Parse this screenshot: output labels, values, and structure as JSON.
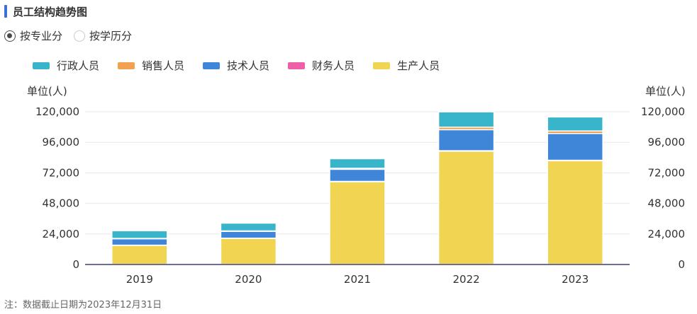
{
  "header": {
    "title": "员工结构趋势图"
  },
  "toggle": {
    "options": [
      {
        "label": "按专业分",
        "checked": true
      },
      {
        "label": "按学历分",
        "checked": false
      }
    ]
  },
  "chart_data": {
    "type": "bar",
    "stacked": true,
    "title": "",
    "xlabel": "",
    "ylabel": "单位(人)",
    "ylabel_right": "单位(人)",
    "ylim": [
      0,
      120000
    ],
    "yticks": [
      "0",
      "24,000",
      "48,000",
      "72,000",
      "96,000",
      "120,000"
    ],
    "yticks_values": [
      0,
      24000,
      48000,
      72000,
      96000,
      120000
    ],
    "categories": [
      "2019",
      "2020",
      "2021",
      "2022",
      "2023"
    ],
    "legend_position": "top-left",
    "grid": true,
    "series": [
      {
        "name": "生产人员",
        "color": "#f0d452",
        "values": [
          15000,
          20500,
          65000,
          89000,
          81500
        ]
      },
      {
        "name": "财务人员",
        "color": "#ee5fa7",
        "values": [
          200,
          200,
          300,
          400,
          400
        ]
      },
      {
        "name": "技术人员",
        "color": "#3f86d9",
        "values": [
          5000,
          5300,
          9500,
          16500,
          21000
        ]
      },
      {
        "name": "销售人员",
        "color": "#f2a150",
        "values": [
          300,
          400,
          800,
          2000,
          2000
        ]
      },
      {
        "name": "行政人员",
        "color": "#38b4cb",
        "values": [
          6000,
          6100,
          7500,
          12000,
          11000
        ]
      }
    ],
    "legend_order": [
      "行政人员",
      "销售人员",
      "技术人员",
      "财务人员",
      "生产人员"
    ]
  },
  "footnote": "注：数据截止日期为2023年12月31日"
}
